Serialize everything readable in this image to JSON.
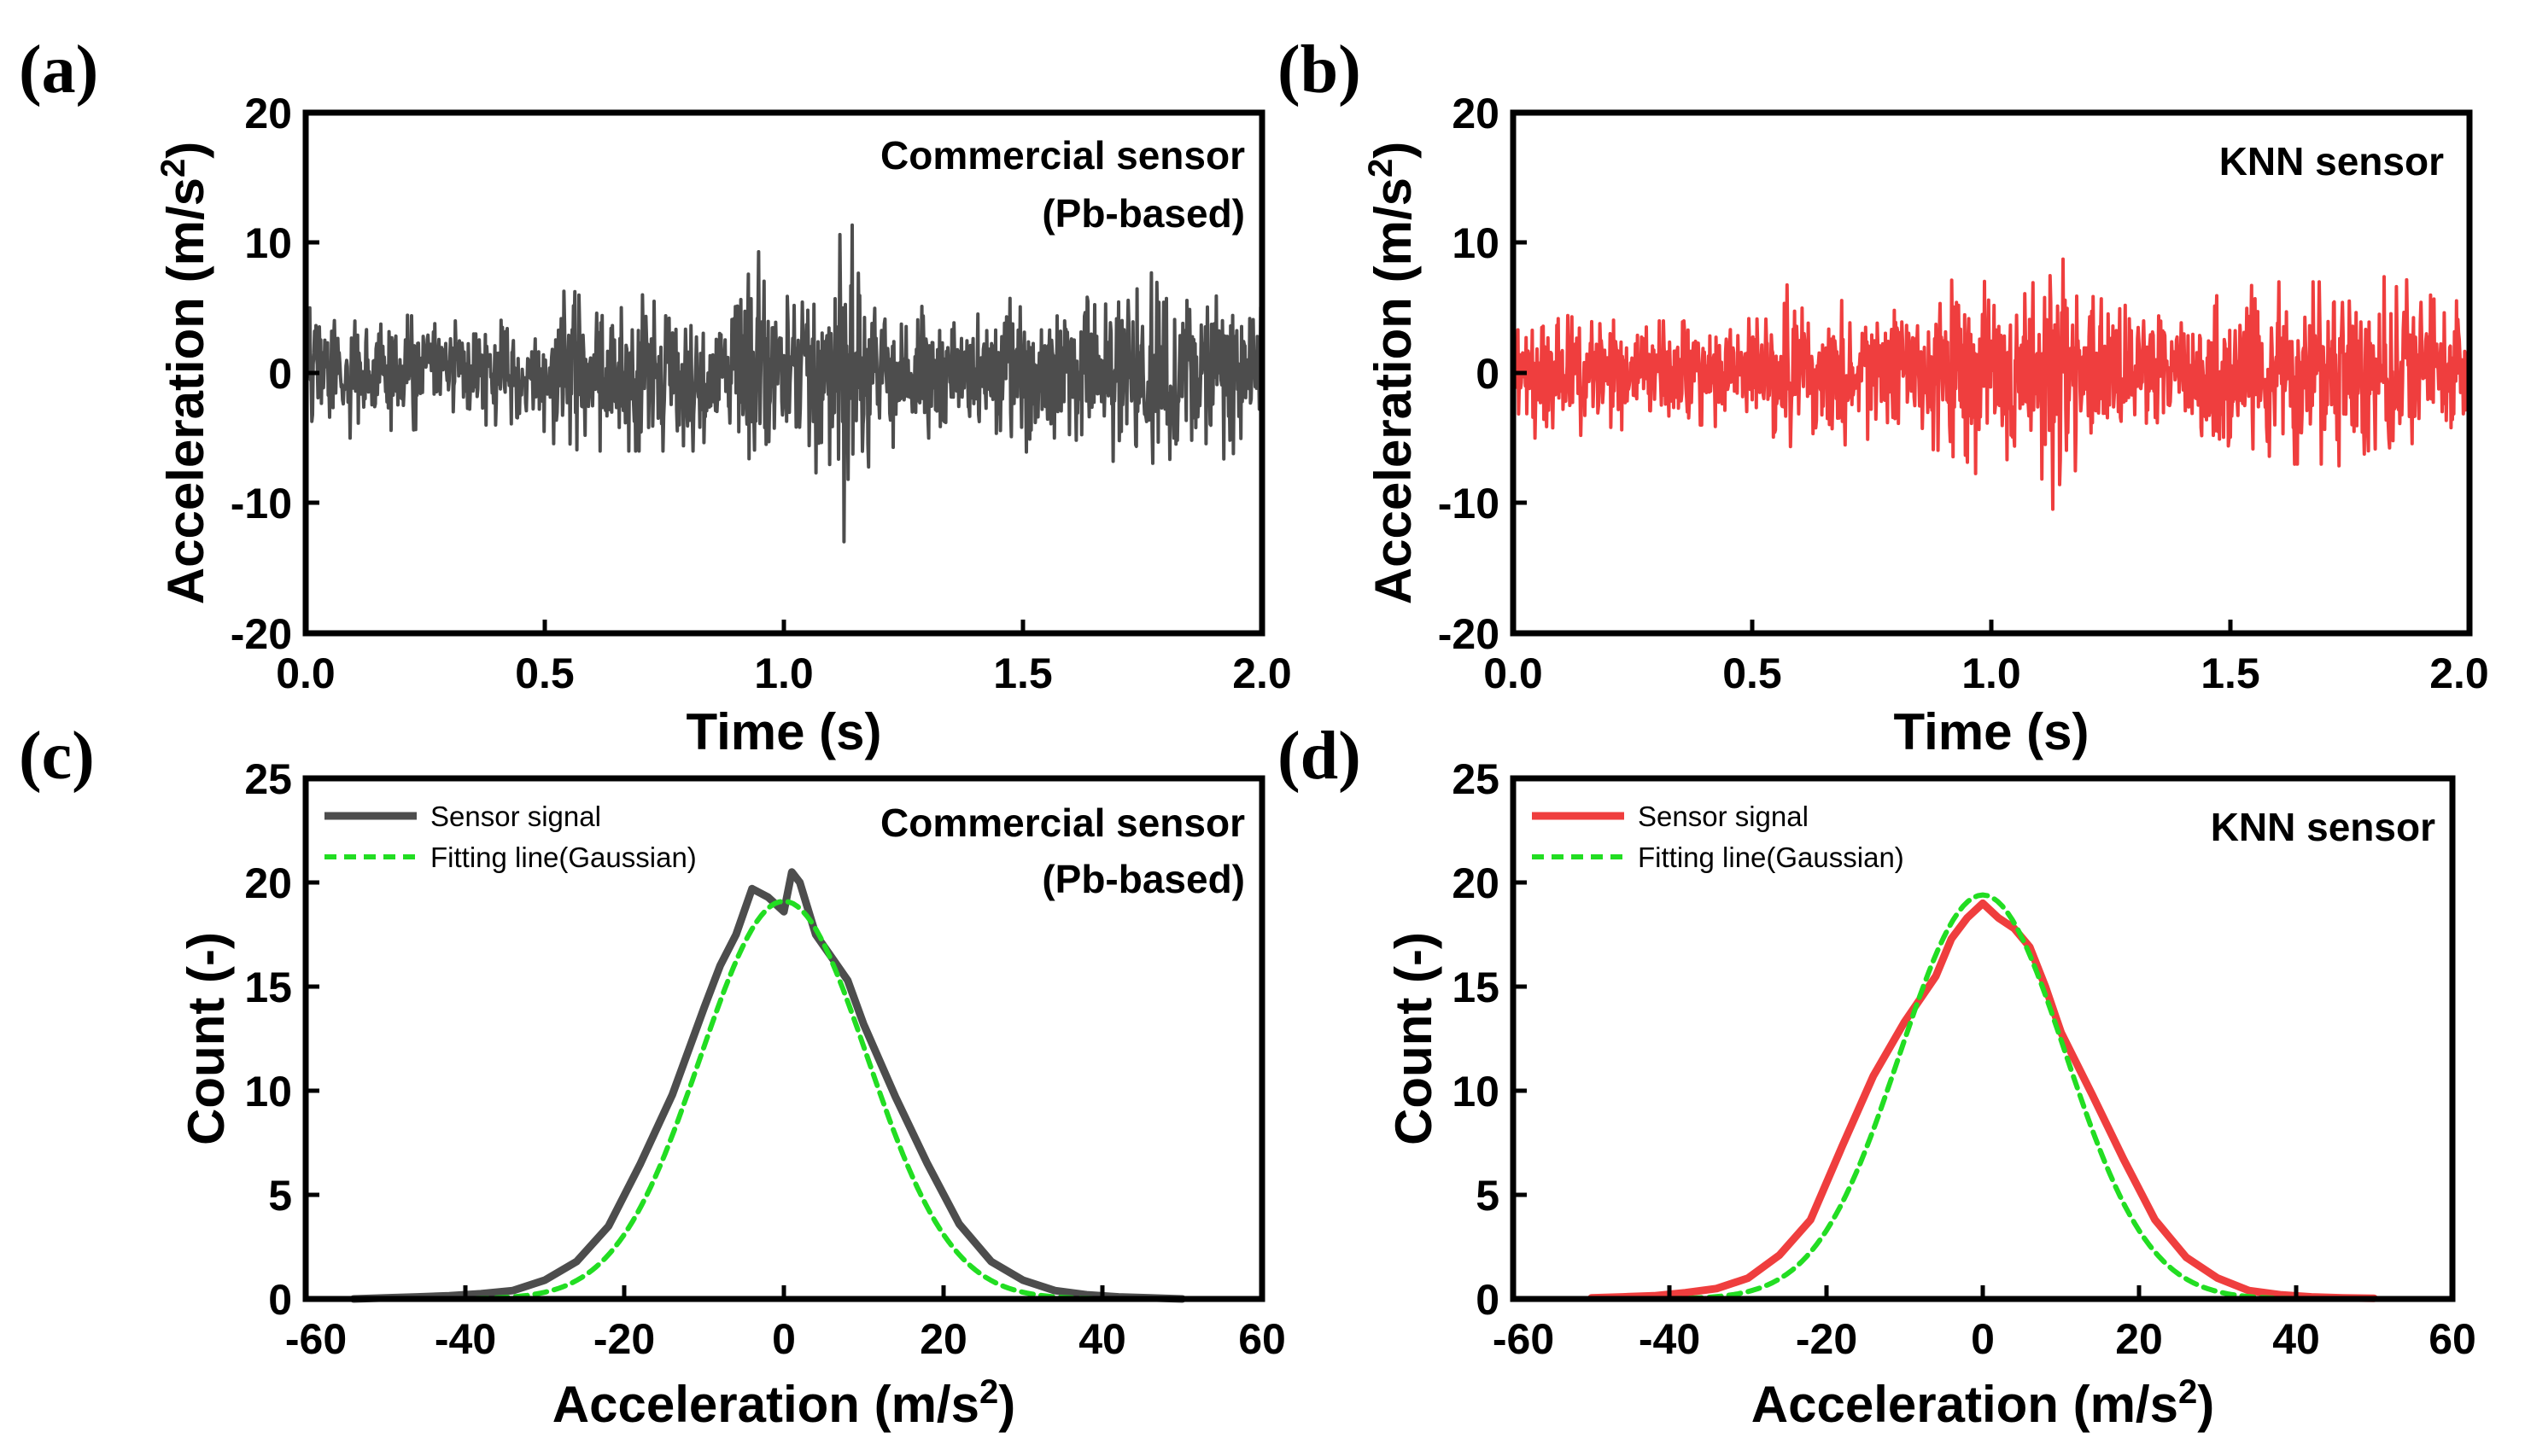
{
  "chart_data": [
    {
      "panel": "(a)",
      "type": "line",
      "annotation": [
        "Commercial sensor",
        "(Pb-based)"
      ],
      "xlabel": "Time (s)",
      "ylabel": [
        "Acceleration (m/s",
        "2",
        ")"
      ],
      "xlim": [
        0,
        2.0
      ],
      "ylim": [
        -20,
        20
      ],
      "xticks": [
        "0.0",
        "0.5",
        "1.0",
        "1.5",
        "2.0"
      ],
      "yticks": [
        "20",
        "10",
        "0",
        "-10",
        "-20"
      ],
      "grid": false,
      "colors": {
        "signal": "#4d4d4d"
      },
      "signal_envelope": {
        "t": [
          0,
          0.1,
          0.2,
          0.3,
          0.4,
          0.5,
          0.56,
          0.6,
          0.7,
          0.8,
          0.9,
          0.92,
          1.0,
          1.1,
          1.12,
          1.2,
          1.3,
          1.4,
          1.5,
          1.6,
          1.7,
          1.8,
          1.9,
          2.0
        ],
        "amplitude": [
          5,
          5,
          4.5,
          4,
          4,
          4.5,
          7.5,
          6,
          6,
          6,
          6,
          10.5,
          7,
          8,
          13.5,
          6,
          5,
          5,
          6,
          7,
          7,
          8,
          7,
          5
        ]
      }
    },
    {
      "panel": "(b)",
      "type": "line",
      "annotation": [
        "KNN sensor"
      ],
      "xlabel": "Time (s)",
      "ylabel": [
        "Acceleration (m/s",
        "2",
        ")"
      ],
      "xlim": [
        0,
        2.0
      ],
      "ylim": [
        -20,
        20
      ],
      "xticks": [
        "0.0",
        "0.5",
        "1.0",
        "1.5",
        "2.0"
      ],
      "yticks": [
        "20",
        "10",
        "0",
        "-10",
        "-20"
      ],
      "grid": false,
      "colors": {
        "signal": "#ef3e3e"
      },
      "signal_envelope": {
        "t": [
          0,
          0.1,
          0.2,
          0.3,
          0.4,
          0.5,
          0.56,
          0.6,
          0.7,
          0.8,
          0.9,
          0.92,
          1.0,
          1.1,
          1.12,
          1.2,
          1.3,
          1.4,
          1.5,
          1.6,
          1.7,
          1.8,
          1.9,
          2.0
        ],
        "amplitude": [
          5,
          5,
          4.5,
          4,
          4,
          4.5,
          7.5,
          6,
          5.5,
          5.5,
          6,
          9.5,
          6.5,
          7,
          11,
          6,
          5,
          5,
          6.5,
          7,
          7,
          7.5,
          7,
          5
        ]
      }
    },
    {
      "panel": "(c)",
      "type": "line",
      "annotation": [
        "Commercial sensor",
        "(Pb-based)"
      ],
      "xlabel": [
        "Acceleration (m/s",
        "2",
        ")"
      ],
      "ylabel": "Count (-)",
      "xlim": [
        -60,
        60
      ],
      "ylim": [
        0,
        25
      ],
      "xticks": [
        "-60",
        "-40",
        "-20",
        "0",
        "20",
        "40",
        "60"
      ],
      "yticks": [
        "25",
        "20",
        "15",
        "10",
        "5",
        "0"
      ],
      "grid": false,
      "legend_position": "top-left",
      "series": [
        {
          "name": "Sensor signal",
          "color": "#4d4d4d",
          "style": "solid",
          "x": [
            -54,
            -50,
            -46,
            -42,
            -38,
            -34,
            -30,
            -26,
            -22,
            -18,
            -14,
            -10,
            -8,
            -6,
            -4,
            -2,
            0,
            1,
            2,
            4,
            6,
            8,
            10,
            14,
            18,
            22,
            26,
            30,
            34,
            38,
            42,
            46,
            50
          ],
          "y": [
            0,
            0.05,
            0.1,
            0.15,
            0.25,
            0.4,
            0.9,
            1.8,
            3.5,
            6.5,
            9.8,
            14,
            16,
            17.5,
            19.7,
            19.3,
            18.6,
            20.5,
            20,
            17.5,
            16.4,
            15.3,
            13.2,
            9.7,
            6.5,
            3.6,
            1.8,
            0.9,
            0.4,
            0.2,
            0.1,
            0.05,
            0
          ]
        },
        {
          "name": "Fitting line(Gaussian)",
          "color": "#22dd22",
          "style": "dashed",
          "gaussian": {
            "amplitude": 19.1,
            "center": 0,
            "sigma": 10.5
          },
          "x_range": [
            -46,
            46
          ]
        }
      ]
    },
    {
      "panel": "(d)",
      "type": "line",
      "annotation": [
        "KNN sensor"
      ],
      "xlabel": [
        "Acceleration (m/s",
        "2",
        ")"
      ],
      "ylabel": "Count (-)",
      "xlim": [
        -60,
        60
      ],
      "ylim": [
        0,
        25
      ],
      "xticks": [
        "-60",
        "-40",
        "-20",
        "0",
        "20",
        "40",
        "60"
      ],
      "yticks": [
        "25",
        "20",
        "15",
        "10",
        "5",
        "0"
      ],
      "grid": false,
      "legend_position": "top-left",
      "series": [
        {
          "name": "Sensor signal",
          "color": "#ef3e3e",
          "style": "solid",
          "x": [
            -50,
            -46,
            -42,
            -38,
            -34,
            -30,
            -26,
            -22,
            -18,
            -14,
            -10,
            -6,
            -4,
            -2,
            0,
            2,
            4,
            6,
            8,
            10,
            14,
            18,
            22,
            26,
            30,
            34,
            38,
            42,
            46,
            50
          ],
          "y": [
            0.05,
            0.1,
            0.15,
            0.3,
            0.5,
            1.0,
            2.1,
            3.8,
            7.3,
            10.7,
            13.3,
            15.5,
            17.3,
            18.3,
            19.0,
            18.3,
            17.8,
            16.9,
            15.0,
            12.8,
            9.8,
            6.7,
            3.8,
            2.0,
            1.0,
            0.4,
            0.2,
            0.1,
            0.05,
            0.03
          ]
        },
        {
          "name": "Fitting line(Gaussian)",
          "color": "#22dd22",
          "style": "dashed",
          "gaussian": {
            "amplitude": 19.4,
            "center": 0,
            "sigma": 10.6
          },
          "x_range": [
            -50,
            50
          ]
        }
      ]
    }
  ]
}
